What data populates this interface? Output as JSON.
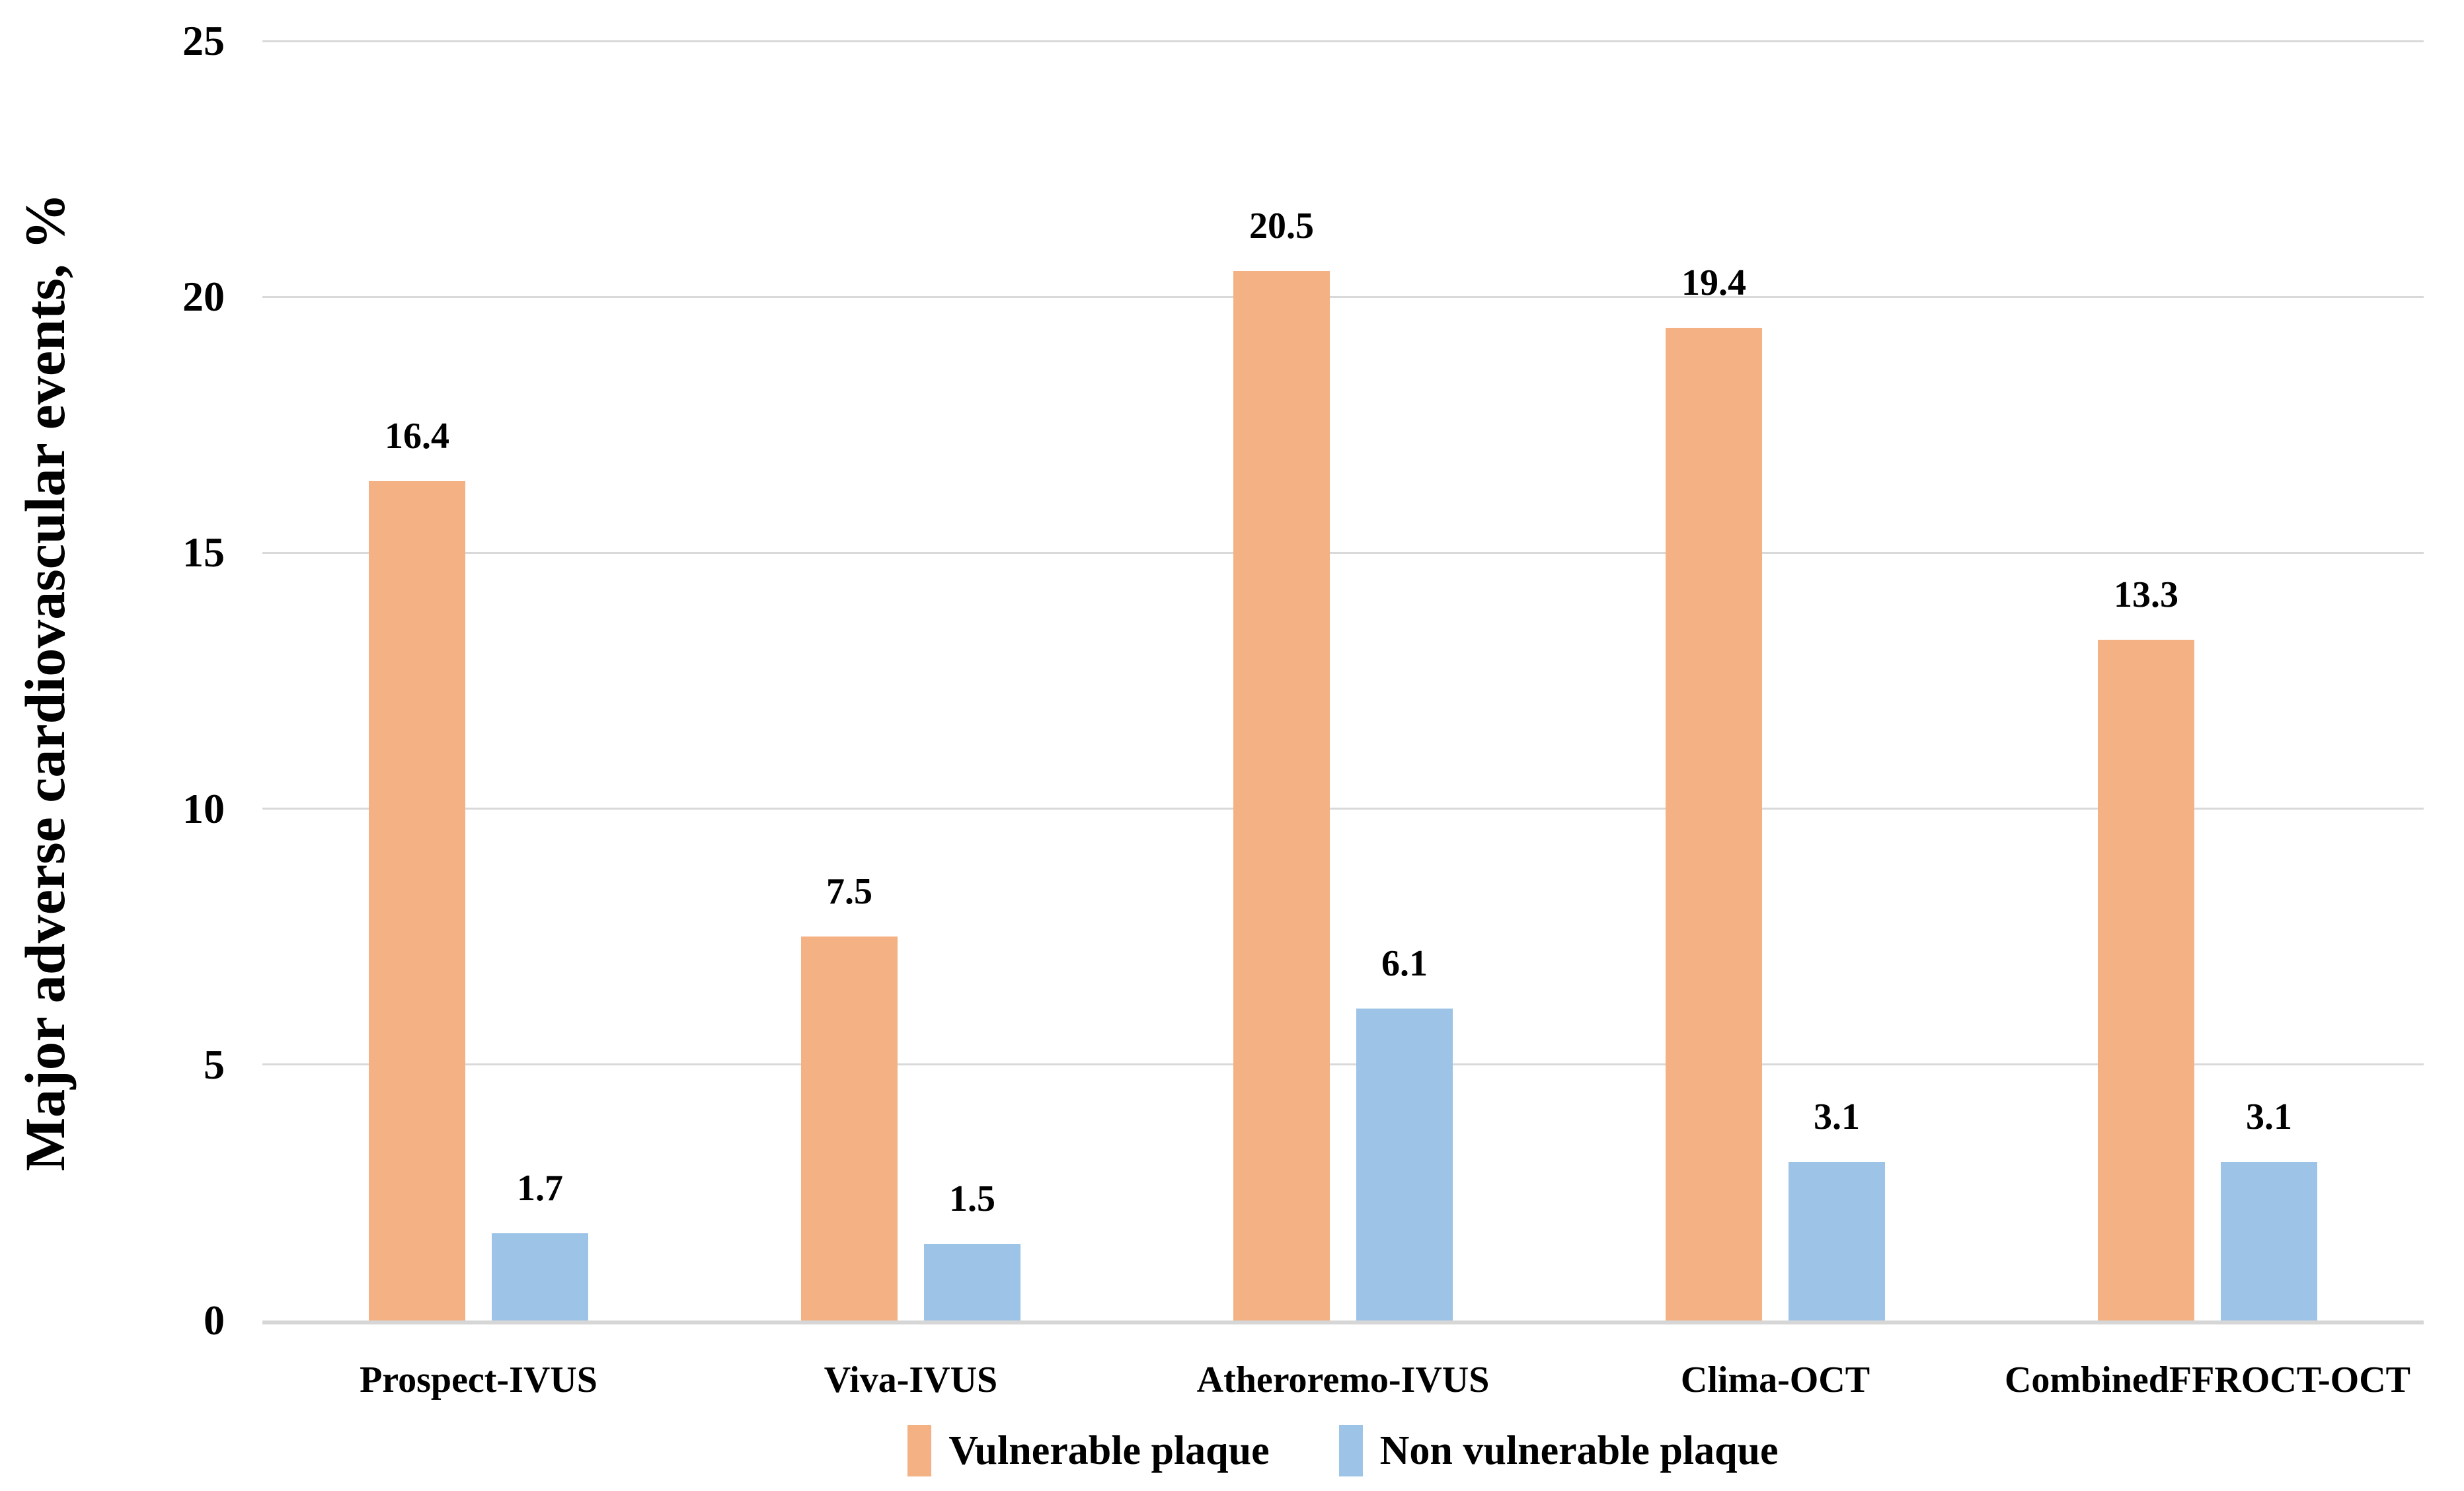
{
  "figure": {
    "background": "#FFFFFF",
    "text_color": "#000000"
  },
  "chart_data": {
    "type": "bar",
    "title": "",
    "ylabel": "Major adverse cardiovascular events, %",
    "xlabel": "",
    "categories": [
      "Prospect-IVUS",
      "Viva-IVUS",
      "Atheroremo-IVUS",
      "Clima-OCT",
      "CombinedFFROCT-OCT"
    ],
    "series": [
      {
        "name": "Vulnerable plaque",
        "color": "#F4B183",
        "values": [
          16.4,
          7.5,
          20.5,
          19.4,
          13.3
        ]
      },
      {
        "name": "Non vulnerable plaque",
        "color": "#9DC3E6",
        "values": [
          1.7,
          1.5,
          6.1,
          3.1,
          3.1
        ]
      }
    ],
    "value_labels": [
      "16.4",
      "1.7",
      "7.5",
      "1.5",
      "20.5",
      "6.1",
      "19.4",
      "3.1",
      "13.3",
      "3.1"
    ],
    "ylim": [
      0,
      25
    ],
    "yticks": [
      0,
      5,
      10,
      15,
      20,
      25
    ],
    "grid": "horizontal",
    "gridline_color": "#D9D9D9",
    "axis_line_color": "#D6D6D6",
    "legend_position": "bottom-center",
    "legend": [
      "Vulnerable plaque",
      "Non vulnerable plaque"
    ]
  }
}
